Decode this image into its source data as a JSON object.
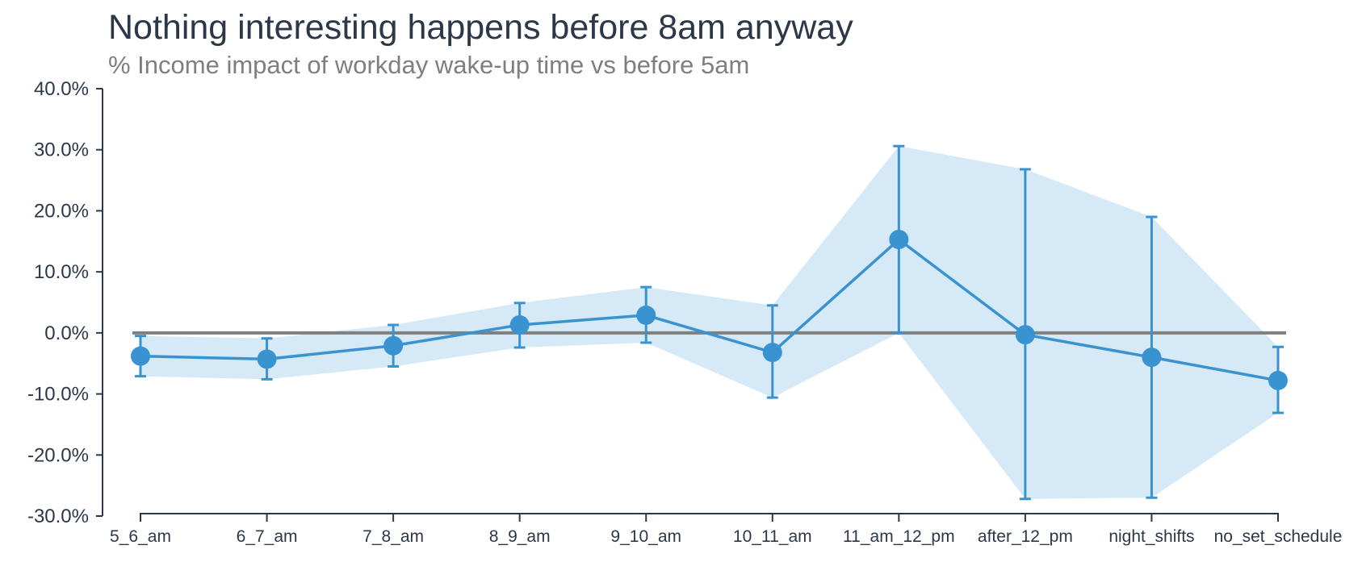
{
  "chart_data": {
    "type": "line",
    "title": "Nothing interesting happens before 8am anyway",
    "subtitle": "% Income impact of workday wake-up time vs before 5am",
    "xlabel": "",
    "ylabel": "",
    "categories": [
      "5_6_am",
      "6_7_am",
      "7_8_am",
      "8_9_am",
      "9_10_am",
      "10_11_am",
      "11_am_12_pm",
      "after_12_pm",
      "night_shifts",
      "no_set_schedule"
    ],
    "series": [
      {
        "values": [
          -3.8,
          -4.3,
          -2.1,
          1.3,
          2.9,
          -3.2,
          15.3,
          -0.3,
          -4.0,
          -7.8
        ],
        "ci_low": [
          -7.1,
          -7.6,
          -5.5,
          -2.4,
          -1.6,
          -10.6,
          0.0,
          -27.2,
          -27.0,
          -13.1
        ],
        "ci_high": [
          -0.5,
          -0.9,
          1.3,
          4.9,
          7.5,
          4.5,
          30.6,
          26.8,
          19.0,
          -2.3
        ]
      }
    ],
    "ylim": [
      -30,
      40
    ],
    "yticks": [
      -30,
      -20,
      -10,
      0,
      10,
      20,
      30,
      40
    ],
    "ytick_labels": [
      "-30.0%",
      "-20.0%",
      "-10.0%",
      "0.0%",
      "10.0%",
      "20.0%",
      "30.0%",
      "40.0%"
    ],
    "reference_line": 0,
    "grid": false,
    "colors": {
      "line": "#3a93d1",
      "band": "#d6e9f6",
      "reference": "#7f7f7f",
      "axis": "#2c3848",
      "title": "#2c3848",
      "subtitle": "#7f7f7f"
    }
  }
}
